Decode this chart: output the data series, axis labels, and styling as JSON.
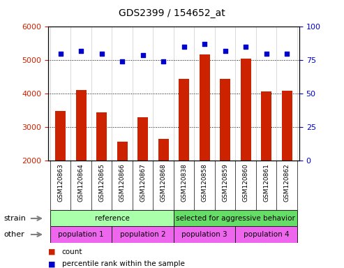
{
  "title": "GDS2399 / 154652_at",
  "samples": [
    "GSM120863",
    "GSM120864",
    "GSM120865",
    "GSM120866",
    "GSM120867",
    "GSM120868",
    "GSM120838",
    "GSM120858",
    "GSM120859",
    "GSM120860",
    "GSM120861",
    "GSM120862"
  ],
  "counts": [
    3480,
    4120,
    3440,
    2580,
    3310,
    2650,
    4450,
    5180,
    4450,
    5050,
    4080,
    4100
  ],
  "percentile_ranks": [
    80,
    82,
    80,
    74,
    79,
    74,
    85,
    87,
    82,
    85,
    80,
    80
  ],
  "bar_color": "#cc2200",
  "dot_color": "#0000cc",
  "ylim_left": [
    2000,
    6000
  ],
  "ylim_right": [
    0,
    100
  ],
  "yticks_left": [
    2000,
    3000,
    4000,
    5000,
    6000
  ],
  "yticks_right": [
    0,
    25,
    50,
    75,
    100
  ],
  "strain_labels": [
    {
      "text": "reference",
      "start": 0,
      "end": 6,
      "color": "#aaffaa"
    },
    {
      "text": "selected for aggressive behavior",
      "start": 6,
      "end": 12,
      "color": "#66dd66"
    }
  ],
  "other_labels": [
    {
      "text": "population 1",
      "start": 0,
      "end": 3,
      "color": "#ee66ee"
    },
    {
      "text": "population 2",
      "start": 3,
      "end": 6,
      "color": "#ee66ee"
    },
    {
      "text": "population 3",
      "start": 6,
      "end": 9,
      "color": "#ee66ee"
    },
    {
      "text": "population 4",
      "start": 9,
      "end": 12,
      "color": "#ee66ee"
    }
  ],
  "xtick_bg": "#dddddd",
  "strain_row_label": "strain",
  "other_row_label": "other",
  "legend_count_label": "count",
  "legend_pct_label": "percentile rank within the sample",
  "bg_color": "#ffffff",
  "tick_label_color_left": "#cc2200",
  "tick_label_color_right": "#0000cc",
  "title_fontsize": 10,
  "bar_width": 0.5
}
